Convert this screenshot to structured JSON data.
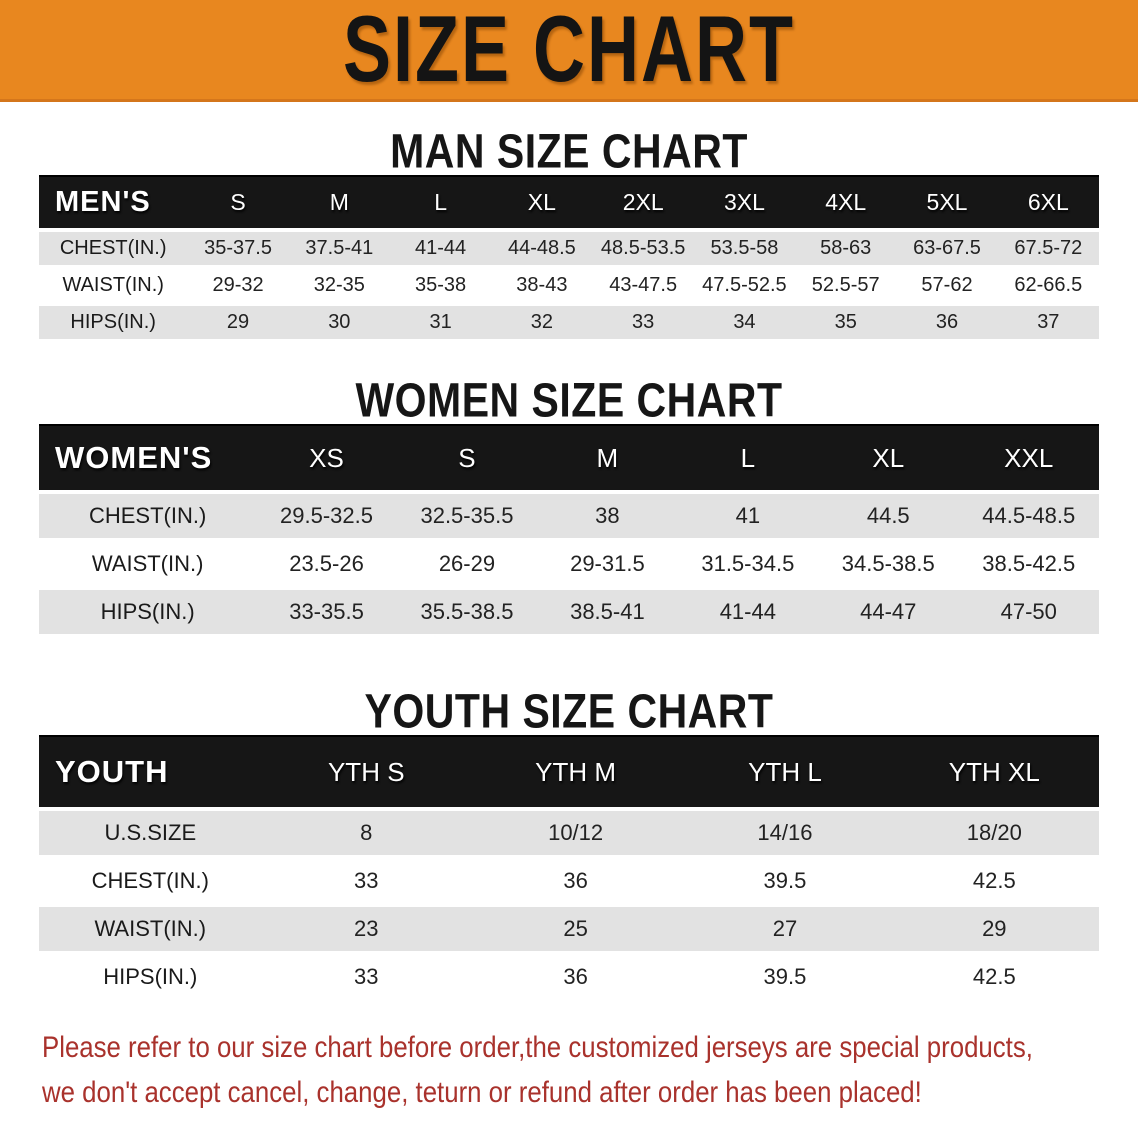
{
  "banner": {
    "title": "SIZE CHART"
  },
  "colors": {
    "banner_bg": "#e8871f",
    "header_bar": "#161616",
    "row_alt_gray": "#e2e2e2",
    "footer_text": "#a9322c"
  },
  "sections": [
    {
      "heading": "MAN SIZE CHART",
      "table": {
        "label": "MEN'S",
        "columns": [
          "S",
          "M",
          "L",
          "XL",
          "2XL",
          "3XL",
          "4XL",
          "5XL",
          "6XL"
        ],
        "rows": [
          {
            "label": "CHEST(IN.)",
            "values": [
              "35-37.5",
              "37.5-41",
              "41-44",
              "44-48.5",
              "48.5-53.5",
              "53.5-58",
              "58-63",
              "63-67.5",
              "67.5-72"
            ]
          },
          {
            "label": "WAIST(IN.)",
            "values": [
              "29-32",
              "32-35",
              "35-38",
              "38-43",
              "43-47.5",
              "47.5-52.5",
              "52.5-57",
              "57-62",
              "62-66.5"
            ]
          },
          {
            "label": "HIPS(IN.)",
            "values": [
              "29",
              "30",
              "31",
              "32",
              "33",
              "34",
              "35",
              "36",
              "37"
            ]
          }
        ]
      }
    },
    {
      "heading": "WOMEN SIZE CHART",
      "table": {
        "label": "WOMEN'S",
        "columns": [
          "XS",
          "S",
          "M",
          "L",
          "XL",
          "XXL"
        ],
        "rows": [
          {
            "label": "CHEST(IN.)",
            "values": [
              "29.5-32.5",
              "32.5-35.5",
              "38",
              "41",
              "44.5",
              "44.5-48.5"
            ]
          },
          {
            "label": "WAIST(IN.)",
            "values": [
              "23.5-26",
              "26-29",
              "29-31.5",
              "31.5-34.5",
              "34.5-38.5",
              "38.5-42.5"
            ]
          },
          {
            "label": "HIPS(IN.)",
            "values": [
              "33-35.5",
              "35.5-38.5",
              "38.5-41",
              "41-44",
              "44-47",
              "47-50"
            ]
          }
        ]
      }
    },
    {
      "heading": "YOUTH SIZE CHART",
      "table": {
        "label": "YOUTH",
        "columns": [
          "YTH S",
          "YTH M",
          "YTH L",
          "YTH XL"
        ],
        "rows": [
          {
            "label": "U.S.SIZE",
            "values": [
              "8",
              "10/12",
              "14/16",
              "18/20"
            ]
          },
          {
            "label": "CHEST(IN.)",
            "values": [
              "33",
              "36",
              "39.5",
              "42.5"
            ]
          },
          {
            "label": "WAIST(IN.)",
            "values": [
              "23",
              "25",
              "27",
              "29"
            ]
          },
          {
            "label": "HIPS(IN.)",
            "values": [
              "33",
              "36",
              "39.5",
              "42.5"
            ]
          }
        ]
      }
    }
  ],
  "footer": {
    "lines": [
      "Please refer to our size chart before order,the customized jerseys are special products,",
      "we don't accept cancel, change, teturn or refund after order has been placed!"
    ]
  }
}
